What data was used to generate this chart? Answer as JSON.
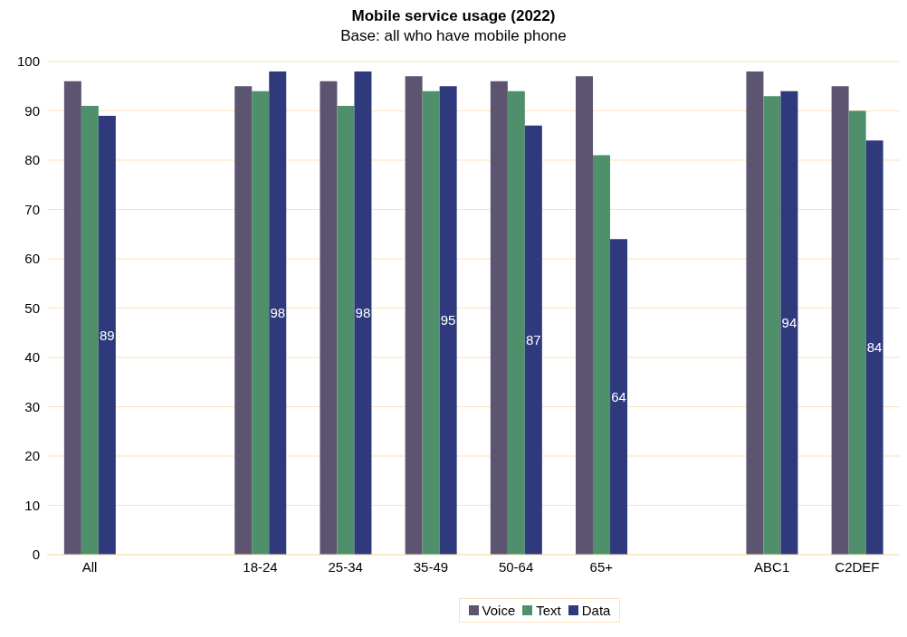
{
  "chart_data": {
    "type": "bar",
    "title": "Mobile service usage (2022)",
    "subtitle": "Base: all who have mobile phone",
    "categories": [
      "All",
      null,
      "18-24",
      "25-34",
      "35-49",
      "50-64",
      "65+",
      null,
      "ABC1",
      "C2DEF"
    ],
    "series": [
      {
        "name": "Voice",
        "color": "#5c5470",
        "values": [
          96,
          null,
          95,
          96,
          97,
          96,
          97,
          null,
          98,
          95
        ]
      },
      {
        "name": "Text",
        "color": "#4f8f6b",
        "values": [
          91,
          null,
          94,
          91,
          94,
          94,
          81,
          null,
          93,
          90
        ]
      },
      {
        "name": "Data",
        "color": "#2e3a7c",
        "values": [
          89,
          null,
          98,
          98,
          95,
          87,
          64,
          null,
          94,
          84
        ],
        "value_labels": [
          "89",
          null,
          "98",
          "98",
          "95",
          "87",
          "64",
          null,
          "94",
          "84"
        ]
      }
    ],
    "ylim": [
      0,
      100
    ],
    "yticks": [
      0,
      10,
      20,
      30,
      40,
      50,
      60,
      70,
      80,
      90,
      100
    ],
    "grid": "y",
    "legend": "bottom"
  }
}
